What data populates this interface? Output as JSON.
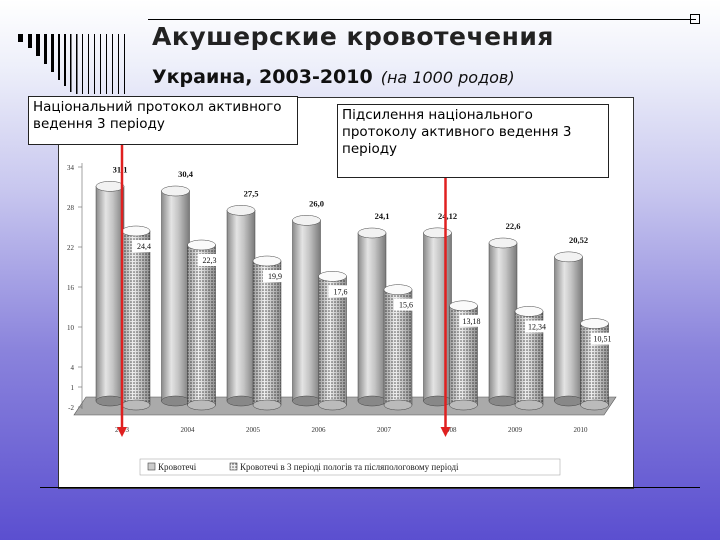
{
  "slide": {
    "title": "Акушерские кровотечения",
    "subtitle": "Украина, 2003-2010",
    "subtitle_note": "(на 1000 родов)",
    "callout_left": "Національний протокол активного ведення 3 періоду",
    "callout_right": "Підсилення національного протоколу активного ведення 3 періоду"
  },
  "chart_data": {
    "type": "bar",
    "categories": [
      "2003",
      "2004",
      "2005",
      "2006",
      "2007",
      "2008",
      "2009",
      "2010"
    ],
    "series": [
      {
        "name": "Кровотечі",
        "values": [
          31.1,
          30.4,
          27.5,
          26.0,
          24.1,
          24.12,
          22.6,
          20.52
        ],
        "labels": [
          "31,1",
          "30,4",
          "27,5",
          "26,0",
          "24,1",
          "24,12",
          "22,6",
          "20,52"
        ],
        "color": "#d0d0d0"
      },
      {
        "name": "Кровотечі в 3 періоді пологів та післяпологовому періоді",
        "values": [
          24.4,
          22.3,
          19.9,
          17.6,
          15.6,
          13.18,
          12.34,
          10.51
        ],
        "labels": [
          "24,4",
          "22,3",
          "19,9",
          "17,6",
          "15,6",
          "13,18",
          "12,34",
          "10,51"
        ],
        "color": "#ececec"
      }
    ],
    "y_ticks": [
      "-2",
      "1",
      "4",
      "10",
      "16",
      "22",
      "28",
      "34"
    ],
    "ylim": [
      -2,
      34
    ],
    "xlabel": "",
    "ylabel": "",
    "legend": "bottom",
    "markers": [
      {
        "at": "2003",
        "color": "#e02020"
      },
      {
        "at": "2008",
        "color": "#e02020"
      }
    ],
    "colors": {
      "chart_bg": "#ffffff",
      "floor": "#aaaaaa"
    }
  }
}
